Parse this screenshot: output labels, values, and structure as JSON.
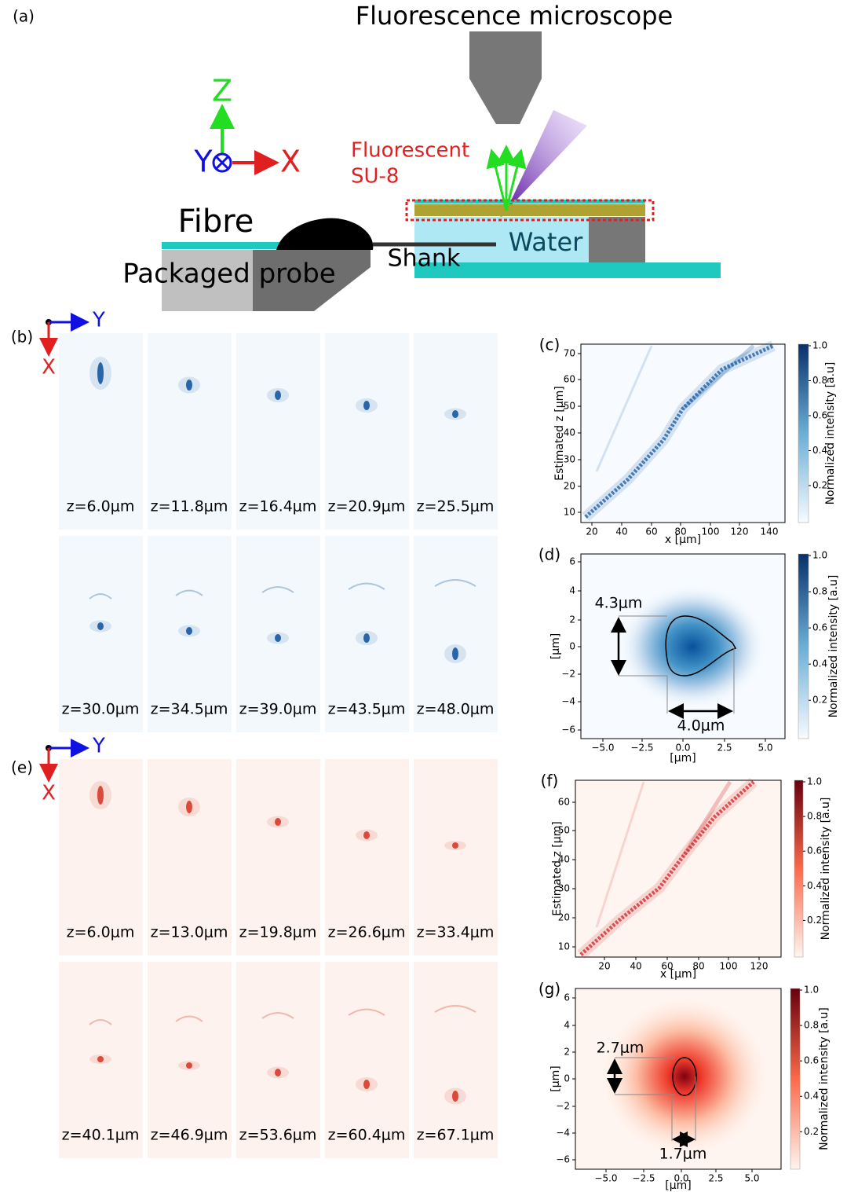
{
  "panel_a": {
    "label": "(a)",
    "title": "Fluorescence microscope",
    "axis_z": "Z",
    "axis_y": "Y",
    "axis_x": "X",
    "fluorescent": [
      "Fluorescent",
      "SU-8"
    ],
    "fibre": "Fibre",
    "probe": "Packaged probe",
    "shank": "Shank",
    "water": "Water"
  },
  "panel_b": {
    "label": "(b)",
    "axis_y": "Y",
    "axis_x": "X",
    "rows": [
      [
        "z=6.0μm",
        "z=11.8μm",
        "z=16.4μm",
        "z=20.9μm",
        "z=25.5μm"
      ],
      [
        "z=30.0μm",
        "z=34.5μm",
        "z=39.0μm",
        "z=43.5μm",
        "z=48.0μm"
      ]
    ]
  },
  "panel_c": {
    "label": "(c)",
    "xlabel": "x [μm]",
    "ylabel": "Estimated z [μm]",
    "xticks": [
      "20",
      "40",
      "60",
      "80",
      "100",
      "120",
      "140"
    ],
    "yticks": [
      "70",
      "60",
      "50",
      "40",
      "30",
      "20",
      "10"
    ],
    "colorbar_label": "Normalized intensity [a.u]",
    "colorbar_ticks": [
      "1.0",
      "0.8",
      "0.6",
      "0.4",
      "0.2"
    ]
  },
  "panel_d": {
    "label": "(d)",
    "xlabel": "[μm]",
    "ylabel": "[μm]",
    "xticks": [
      "−5.0",
      "−2.5",
      "0.0",
      "2.5",
      "5.0"
    ],
    "yticks": [
      "6",
      "4",
      "2",
      "0",
      "−2",
      "−4",
      "−6"
    ],
    "height_annotation": "4.3μm",
    "width_annotation": "4.0μm",
    "colorbar_label": "Normalized intensity [a.u]",
    "colorbar_ticks": [
      "1.0",
      "0.8",
      "0.6",
      "0.4",
      "0.2"
    ]
  },
  "panel_e": {
    "label": "(e)",
    "axis_y": "Y",
    "axis_x": "X",
    "rows": [
      [
        "z=6.0μm",
        "z=13.0μm",
        "z=19.8μm",
        "z=26.6μm",
        "z=33.4μm"
      ],
      [
        "z=40.1μm",
        "z=46.9μm",
        "z=53.6μm",
        "z=60.4μm",
        "z=67.1μm"
      ]
    ]
  },
  "panel_f": {
    "label": "(f)",
    "xlabel": "x [μm]",
    "ylabel": "Estimated z [μm]",
    "xticks": [
      "20",
      "40",
      "60",
      "80",
      "100",
      "120"
    ],
    "yticks": [
      "60",
      "50",
      "40",
      "30",
      "20",
      "10"
    ],
    "colorbar_label": "Normalized intensity [a.u]",
    "colorbar_ticks": [
      "1.0",
      "0.8",
      "0.6",
      "0.4",
      "0.2"
    ]
  },
  "panel_g": {
    "label": "(g)",
    "xlabel": "[μm]",
    "ylabel": "[μm]",
    "xticks": [
      "−5.0",
      "−2.5",
      "0.0",
      "2.5",
      "5.0"
    ],
    "yticks": [
      "6",
      "4",
      "2",
      "0",
      "−2",
      "−4",
      "−6"
    ],
    "height_annotation": "2.7μm",
    "width_annotation": "1.7μm",
    "colorbar_label": "Normalized intensity [a.u]",
    "colorbar_ticks": [
      "1.0",
      "0.8",
      "0.6",
      "0.4",
      "0.2"
    ]
  }
}
